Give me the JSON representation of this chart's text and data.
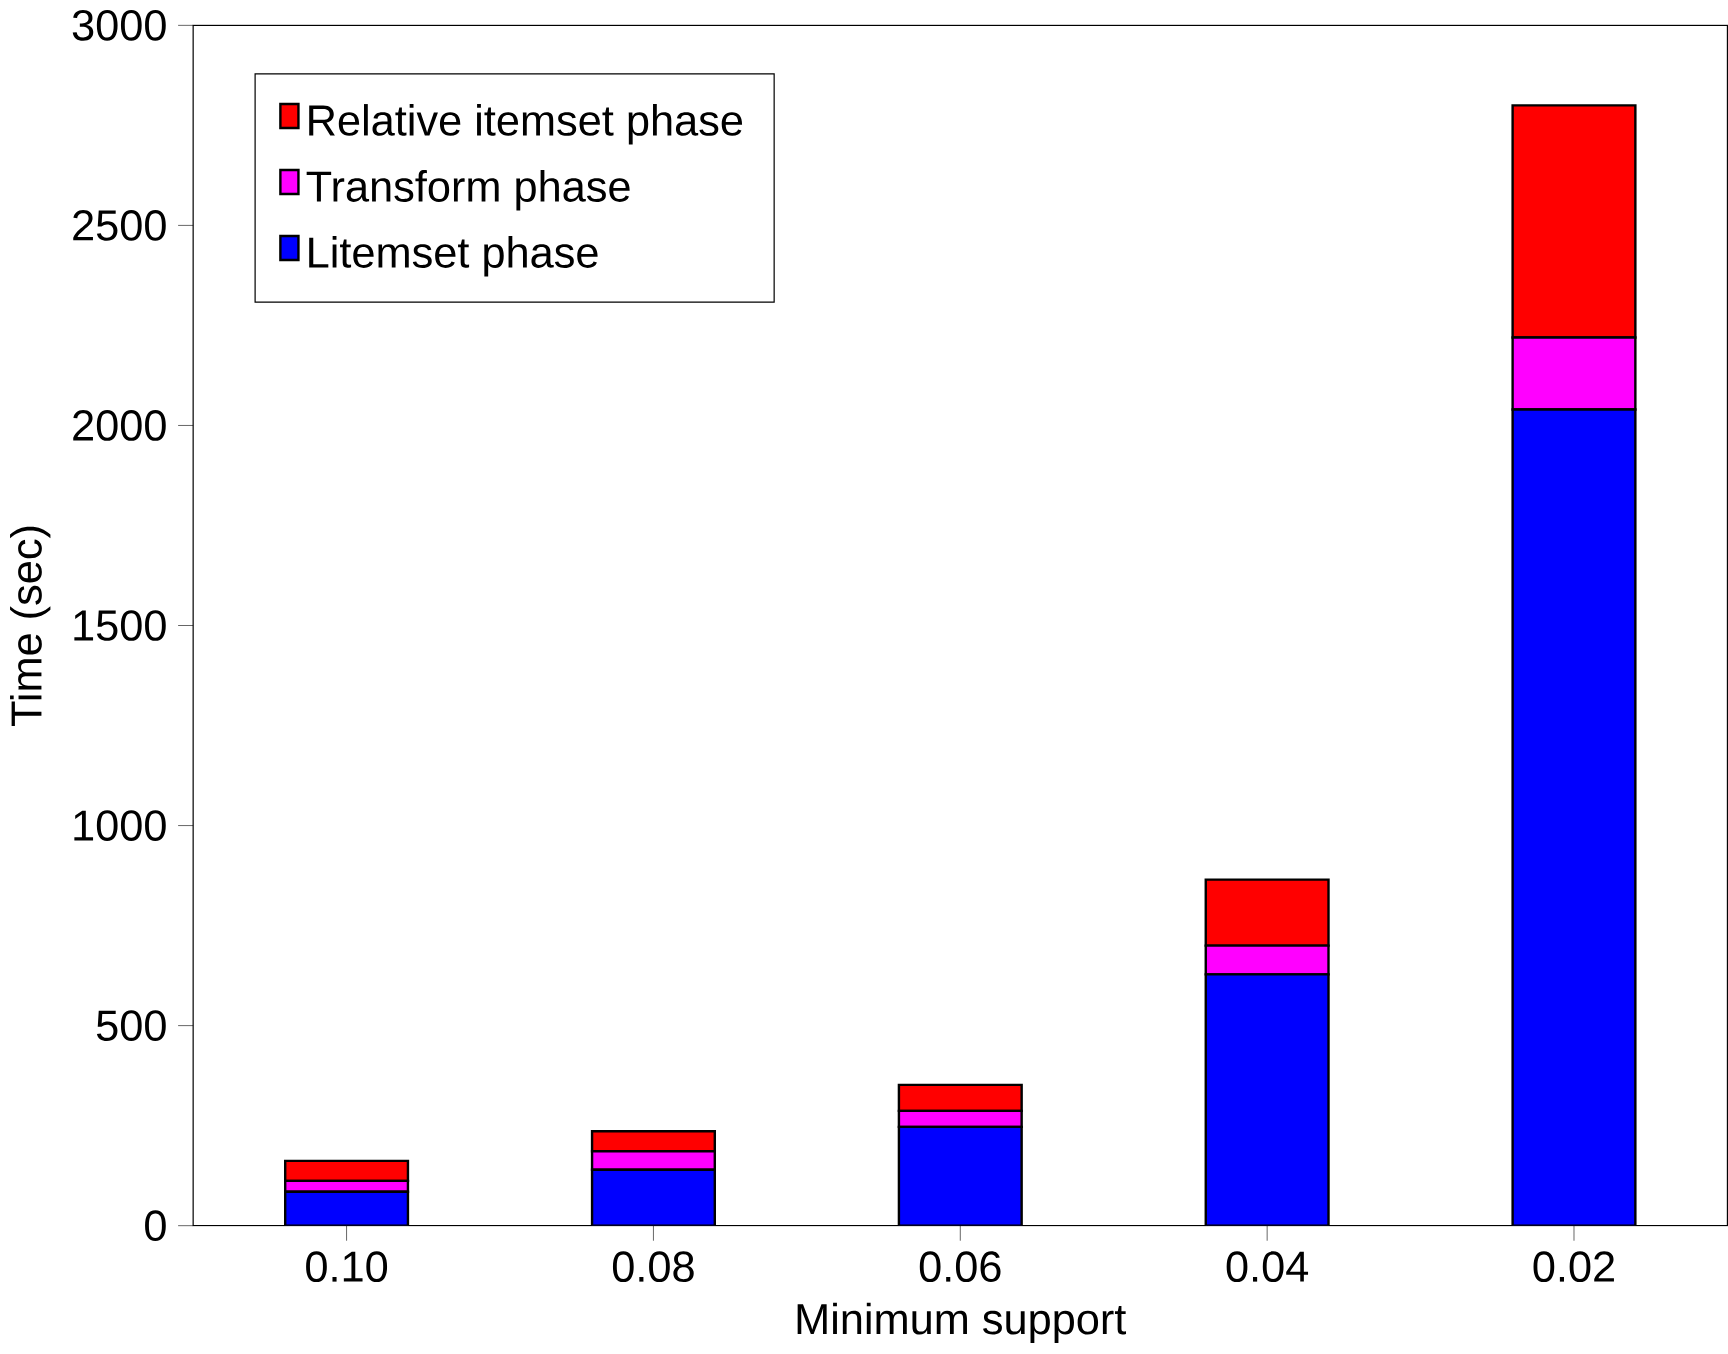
{
  "chart_data": {
    "type": "bar",
    "stacked": true,
    "xlabel": "Minimum support",
    "ylabel": "Time (sec)",
    "categories": [
      "0.10",
      "0.08",
      "0.06",
      "0.04",
      "0.02"
    ],
    "series": [
      {
        "name": "Litemset phase",
        "color": "#0000ff",
        "values": [
          85,
          140,
          247,
          628,
          2040
        ]
      },
      {
        "name": "Transform phase",
        "color": "#ff00ff",
        "values": [
          27,
          46,
          40,
          72,
          180
        ]
      },
      {
        "name": "Relative itemset phase",
        "color": "#ff0000",
        "values": [
          50,
          50,
          65,
          165,
          580
        ]
      }
    ],
    "ylim": [
      0,
      3000
    ],
    "yticks": [
      0,
      500,
      1000,
      1500,
      2000,
      2500,
      3000
    ],
    "grid": false,
    "legend": "top left"
  }
}
